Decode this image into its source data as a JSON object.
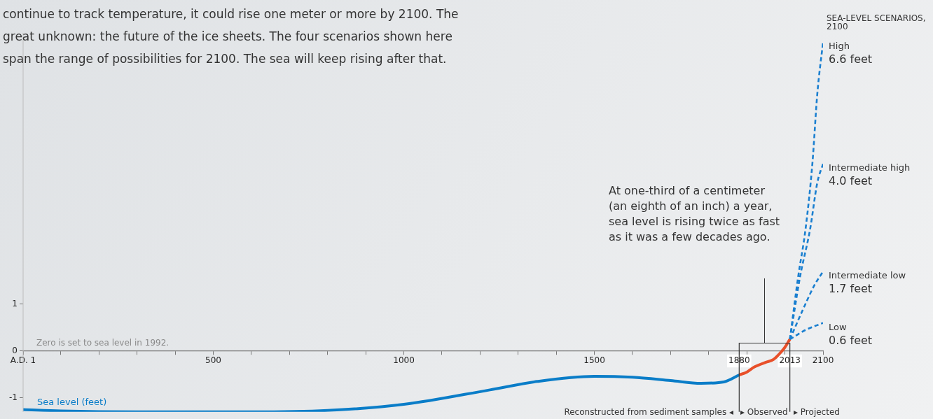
{
  "chart_data": {
    "type": "line",
    "annotations": [
      "continue to track temperature, it could rise one meter or more by 2100. The great unknown: the future of the ice sheets. The four scenarios shown here span the range of possibilities for 2100. The sea will keep rising after that.",
      "SEA-LEVEL SCENARIOS, 2100",
      "Zero is set to sea level in 1992.",
      "At one-third of a centimeter (an eighth of an inch) a year, sea level is rising twice as fast as it was a few decades ago.",
      "Reconstructed from sediment samples ◂",
      "▸ Observed",
      "▸ Projected"
    ],
    "series": [
      {
        "name": "Sea level (feet)",
        "color": "#0a7dc8",
        "x": [
          1,
          100,
          300,
          600,
          800,
          1000,
          1226,
          1350,
          1500,
          1600,
          1700,
          1780,
          1840,
          1880
        ],
        "values": [
          -1.25,
          -1.28,
          -1.3,
          -1.3,
          -1.27,
          -1.14,
          -0.83,
          -0.65,
          -0.54,
          -0.56,
          -0.63,
          -0.69,
          -0.66,
          -0.51
        ]
      },
      {
        "color": "#e8502a",
        "x": [
          1880,
          1900,
          1920,
          1950,
          1970,
          1990,
          2000,
          2013
        ],
        "values": [
          -0.51,
          -0.45,
          -0.34,
          -0.24,
          -0.18,
          -0.02,
          0.08,
          0.25
        ]
      },
      {
        "name": "High",
        "color": "#1a7fd0",
        "line_style": "dashed",
        "x": [
          2013,
          2035,
          2054,
          2072,
          2085,
          2100
        ],
        "values": [
          0.25,
          1.6,
          2.6,
          4.0,
          5.5,
          6.6
        ],
        "value_labels": [
          null,
          null,
          null,
          null,
          null,
          "6.6 feet"
        ]
      },
      {
        "name": "Intermediate high",
        "color": "#1a7fd0",
        "line_style": "dashed",
        "x": [
          2013,
          2040,
          2066,
          2085,
          2100
        ],
        "values": [
          0.25,
          1.6,
          2.6,
          3.6,
          4.0
        ],
        "value_labels": [
          null,
          null,
          null,
          null,
          "4.0 feet"
        ]
      },
      {
        "name": "Intermediate low",
        "color": "#1a7fd0",
        "line_style": "dashed",
        "x": [
          2013,
          2048,
          2077,
          2100
        ],
        "values": [
          0.25,
          0.9,
          1.4,
          1.7
        ],
        "value_labels": [
          null,
          null,
          null,
          "1.7 feet"
        ]
      },
      {
        "name": "Low",
        "color": "#1a7fd0",
        "line_style": "dashed",
        "x": [
          2013,
          2054,
          2100
        ],
        "values": [
          0.25,
          0.45,
          0.6
        ],
        "value_labels": [
          null,
          null,
          "0.6 feet"
        ]
      }
    ],
    "xlim": [
      1,
      2100
    ],
    "xticks": [
      {
        "value": 1,
        "label": "A.D. 1"
      },
      {
        "value": 100,
        "label": null
      },
      {
        "value": 200,
        "label": null
      },
      {
        "value": 300,
        "label": null
      },
      {
        "value": 400,
        "label": null
      },
      500,
      {
        "value": 600,
        "label": null
      },
      {
        "value": 700,
        "label": null
      },
      {
        "value": 800,
        "label": null
      },
      {
        "value": 900,
        "label": null
      },
      1000,
      {
        "value": 1100,
        "label": null
      },
      {
        "value": 1200,
        "label": null
      },
      {
        "value": 1300,
        "label": null
      },
      {
        "value": 1400,
        "label": null
      },
      1500,
      {
        "value": 1600,
        "label": null
      },
      {
        "value": 1700,
        "label": null
      },
      {
        "value": 1800,
        "label": null
      },
      1880,
      {
        "value": 1900,
        "label": null
      },
      {
        "value": 2000,
        "label": null
      },
      2013,
      2100
    ],
    "ylim": [
      -1.3,
      6.8
    ],
    "yticks": [
      -1,
      0,
      1
    ],
    "ref_lines": [
      {
        "axis": "x",
        "value": 1880,
        "color": "#333333"
      },
      {
        "axis": "x",
        "value": 2013,
        "color": "#333333"
      }
    ],
    "marker": "none",
    "line_style": "solid",
    "grid": false,
    "legend": false
  }
}
